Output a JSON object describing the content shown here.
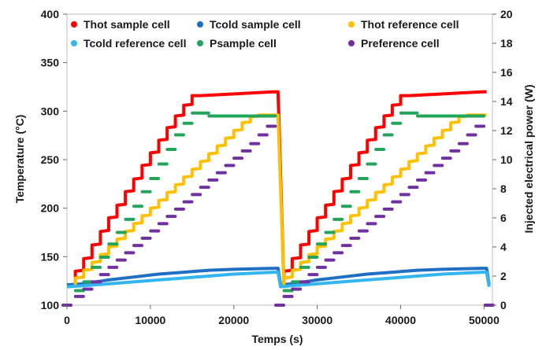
{
  "chart_data": {
    "type": "line",
    "xlabel": "Temps (s)",
    "ylabel_left": "Temperature (°C)",
    "ylabel_right": "Injected electrical power (W)",
    "xlim": [
      0,
      51000
    ],
    "ylim_left": [
      100,
      400
    ],
    "ylim_right": [
      0,
      20
    ],
    "x_ticks": [
      "0",
      "10000",
      "20000",
      "30000",
      "40000",
      "50000"
    ],
    "y_left_ticks": [
      "100",
      "150",
      "200",
      "250",
      "300",
      "350",
      "400"
    ],
    "y_right_ticks": [
      "0",
      "2",
      "4",
      "6",
      "8",
      "10",
      "12",
      "14",
      "16",
      "18",
      "20"
    ],
    "grid": false,
    "legend_position": "top",
    "series": [
      {
        "name": "Thot sample cell",
        "axis": "left",
        "style": "line",
        "color": "#ff0000",
        "points": [
          [
            1000,
            122
          ],
          [
            1000,
            135
          ],
          [
            2000,
            136
          ],
          [
            2000,
            148
          ],
          [
            3000,
            149
          ],
          [
            3000,
            162
          ],
          [
            4000,
            163
          ],
          [
            4000,
            176
          ],
          [
            5000,
            177
          ],
          [
            5000,
            190
          ],
          [
            6000,
            191
          ],
          [
            6000,
            203
          ],
          [
            7000,
            204
          ],
          [
            7000,
            217
          ],
          [
            8000,
            218
          ],
          [
            8000,
            230
          ],
          [
            9000,
            231
          ],
          [
            9000,
            244
          ],
          [
            10000,
            245
          ],
          [
            10000,
            257
          ],
          [
            11000,
            258
          ],
          [
            11000,
            270
          ],
          [
            12000,
            271
          ],
          [
            12000,
            283
          ],
          [
            13000,
            284
          ],
          [
            13000,
            295
          ],
          [
            14000,
            296
          ],
          [
            14000,
            306
          ],
          [
            15000,
            307
          ],
          [
            15000,
            316
          ],
          [
            16000,
            316
          ],
          [
            24800,
            320
          ],
          [
            25300,
            320
          ],
          [
            26000,
            121
          ],
          [
            26000,
            135
          ],
          [
            27000,
            136
          ],
          [
            27000,
            148
          ],
          [
            28000,
            149
          ],
          [
            28000,
            162
          ],
          [
            29000,
            163
          ],
          [
            29000,
            176
          ],
          [
            30000,
            177
          ],
          [
            30000,
            190
          ],
          [
            31000,
            191
          ],
          [
            31000,
            203
          ],
          [
            32000,
            204
          ],
          [
            32000,
            217
          ],
          [
            33000,
            218
          ],
          [
            33000,
            230
          ],
          [
            34000,
            231
          ],
          [
            34000,
            244
          ],
          [
            35000,
            245
          ],
          [
            35000,
            257
          ],
          [
            36000,
            258
          ],
          [
            36000,
            270
          ],
          [
            37000,
            271
          ],
          [
            37000,
            283
          ],
          [
            38000,
            284
          ],
          [
            38000,
            295
          ],
          [
            39000,
            296
          ],
          [
            39000,
            306
          ],
          [
            40000,
            307
          ],
          [
            40000,
            316
          ],
          [
            41000,
            316
          ],
          [
            49800,
            320
          ],
          [
            50300,
            320
          ]
        ]
      },
      {
        "name": "Tcold sample cell",
        "axis": "left",
        "style": "line",
        "color": "#1f6fc5",
        "points": [
          [
            0,
            121
          ],
          [
            2000,
            122
          ],
          [
            5000,
            126
          ],
          [
            8000,
            129
          ],
          [
            11000,
            132
          ],
          [
            14000,
            134
          ],
          [
            17000,
            136
          ],
          [
            20000,
            137
          ],
          [
            24800,
            138
          ],
          [
            25300,
            138
          ],
          [
            25600,
            121
          ],
          [
            27000,
            122
          ],
          [
            30000,
            126
          ],
          [
            33000,
            129
          ],
          [
            36000,
            132
          ],
          [
            39000,
            134
          ],
          [
            42000,
            136
          ],
          [
            45000,
            137
          ],
          [
            49800,
            138
          ],
          [
            50300,
            138
          ],
          [
            50600,
            121
          ]
        ]
      },
      {
        "name": "Thot reference cell",
        "axis": "left",
        "style": "line",
        "color": "#ffc000",
        "points": [
          [
            1000,
            121
          ],
          [
            1000,
            128
          ],
          [
            2000,
            129
          ],
          [
            2000,
            136
          ],
          [
            3000,
            137
          ],
          [
            3000,
            144
          ],
          [
            4000,
            145
          ],
          [
            4000,
            152
          ],
          [
            5000,
            153
          ],
          [
            5000,
            160
          ],
          [
            6000,
            161
          ],
          [
            6000,
            168
          ],
          [
            7000,
            169
          ],
          [
            7000,
            176
          ],
          [
            8000,
            177
          ],
          [
            8000,
            184
          ],
          [
            9000,
            185
          ],
          [
            9000,
            192
          ],
          [
            10000,
            193
          ],
          [
            10000,
            200
          ],
          [
            11000,
            201
          ],
          [
            11000,
            208
          ],
          [
            12000,
            209
          ],
          [
            12000,
            216
          ],
          [
            13000,
            217
          ],
          [
            13000,
            224
          ],
          [
            14000,
            225
          ],
          [
            14000,
            232
          ],
          [
            15000,
            233
          ],
          [
            15000,
            240
          ],
          [
            16000,
            241
          ],
          [
            16000,
            248
          ],
          [
            17000,
            249
          ],
          [
            17000,
            256
          ],
          [
            18000,
            257
          ],
          [
            18000,
            264
          ],
          [
            19000,
            265
          ],
          [
            19000,
            272
          ],
          [
            20000,
            273
          ],
          [
            20000,
            280
          ],
          [
            21000,
            281
          ],
          [
            21000,
            288
          ],
          [
            22000,
            289
          ],
          [
            22000,
            294
          ],
          [
            23000,
            295
          ],
          [
            23000,
            296
          ],
          [
            24800,
            296
          ],
          [
            25300,
            296
          ],
          [
            26000,
            121
          ],
          [
            26000,
            128
          ],
          [
            27000,
            129
          ],
          [
            27000,
            136
          ],
          [
            28000,
            137
          ],
          [
            28000,
            144
          ],
          [
            29000,
            145
          ],
          [
            29000,
            152
          ],
          [
            30000,
            153
          ],
          [
            30000,
            160
          ],
          [
            31000,
            161
          ],
          [
            31000,
            168
          ],
          [
            32000,
            169
          ],
          [
            32000,
            176
          ],
          [
            33000,
            177
          ],
          [
            33000,
            184
          ],
          [
            34000,
            185
          ],
          [
            34000,
            192
          ],
          [
            35000,
            193
          ],
          [
            35000,
            200
          ],
          [
            36000,
            201
          ],
          [
            36000,
            208
          ],
          [
            37000,
            209
          ],
          [
            37000,
            216
          ],
          [
            38000,
            217
          ],
          [
            38000,
            224
          ],
          [
            39000,
            225
          ],
          [
            39000,
            232
          ],
          [
            40000,
            233
          ],
          [
            40000,
            240
          ],
          [
            41000,
            241
          ],
          [
            41000,
            248
          ],
          [
            42000,
            249
          ],
          [
            42000,
            256
          ],
          [
            43000,
            257
          ],
          [
            43000,
            264
          ],
          [
            44000,
            265
          ],
          [
            44000,
            272
          ],
          [
            45000,
            273
          ],
          [
            45000,
            280
          ],
          [
            46000,
            281
          ],
          [
            46000,
            288
          ],
          [
            47000,
            289
          ],
          [
            47000,
            294
          ],
          [
            48000,
            295
          ],
          [
            48000,
            296
          ],
          [
            49800,
            296
          ],
          [
            50300,
            296
          ]
        ]
      },
      {
        "name": "Tcold reference cell",
        "axis": "left",
        "style": "line",
        "color": "#33b5f0",
        "points": [
          [
            0,
            119
          ],
          [
            2000,
            120
          ],
          [
            5000,
            122
          ],
          [
            8000,
            124
          ],
          [
            11000,
            126
          ],
          [
            14000,
            128
          ],
          [
            17000,
            130
          ],
          [
            20000,
            132
          ],
          [
            24800,
            134
          ],
          [
            25300,
            134
          ],
          [
            25600,
            119
          ],
          [
            27000,
            120
          ],
          [
            30000,
            122
          ],
          [
            33000,
            124
          ],
          [
            36000,
            126
          ],
          [
            39000,
            128
          ],
          [
            42000,
            130
          ],
          [
            45000,
            132
          ],
          [
            49800,
            134
          ],
          [
            50300,
            134
          ],
          [
            50600,
            119
          ]
        ]
      },
      {
        "name": "Psample cell",
        "axis": "right",
        "style": "segments",
        "color": "#22a55a",
        "points": [
          [
            1500,
            1.0
          ],
          [
            2500,
            1.6
          ],
          [
            3500,
            2.6
          ],
          [
            4500,
            3.3
          ],
          [
            5500,
            4.2
          ],
          [
            6500,
            5.0
          ],
          [
            7500,
            5.9
          ],
          [
            8500,
            6.8
          ],
          [
            9500,
            7.8
          ],
          [
            10500,
            8.7
          ],
          [
            11500,
            9.7
          ],
          [
            12500,
            10.7
          ],
          [
            13500,
            11.7
          ],
          [
            14500,
            12.5
          ],
          [
            15500,
            13.2
          ],
          [
            16500,
            13.2
          ],
          [
            17500,
            13.0
          ],
          [
            18500,
            13.0
          ],
          [
            19500,
            13.0
          ],
          [
            20500,
            13.0
          ],
          [
            21500,
            13.0
          ],
          [
            22500,
            13.0
          ],
          [
            23500,
            13.0
          ],
          [
            24500,
            13.0
          ],
          [
            26500,
            1.0
          ],
          [
            27500,
            1.6
          ],
          [
            28500,
            2.6
          ],
          [
            29500,
            3.3
          ],
          [
            30500,
            4.2
          ],
          [
            31500,
            5.0
          ],
          [
            32500,
            5.9
          ],
          [
            33500,
            6.8
          ],
          [
            34500,
            7.8
          ],
          [
            35500,
            8.7
          ],
          [
            36500,
            9.7
          ],
          [
            37500,
            10.7
          ],
          [
            38500,
            11.7
          ],
          [
            39500,
            12.5
          ],
          [
            40500,
            13.2
          ],
          [
            41500,
            13.2
          ],
          [
            42500,
            13.0
          ],
          [
            43500,
            13.0
          ],
          [
            44500,
            13.0
          ],
          [
            45500,
            13.0
          ],
          [
            46500,
            13.0
          ],
          [
            47500,
            13.0
          ],
          [
            48500,
            13.0
          ],
          [
            49500,
            13.0
          ]
        ]
      },
      {
        "name": "Preference cell",
        "axis": "right",
        "style": "segments",
        "color": "#7030a0",
        "points": [
          [
            0,
            0
          ],
          [
            1500,
            0.6
          ],
          [
            2500,
            1.1
          ],
          [
            3500,
            1.6
          ],
          [
            4500,
            2.1
          ],
          [
            5500,
            2.6
          ],
          [
            6500,
            3.1
          ],
          [
            7500,
            3.6
          ],
          [
            8500,
            4.1
          ],
          [
            9500,
            4.6
          ],
          [
            10500,
            5.1
          ],
          [
            11500,
            5.6
          ],
          [
            12500,
            6.1
          ],
          [
            13500,
            6.6
          ],
          [
            14500,
            7.1
          ],
          [
            15500,
            7.6
          ],
          [
            16500,
            8.1
          ],
          [
            17500,
            8.6
          ],
          [
            18500,
            9.1
          ],
          [
            19500,
            9.6
          ],
          [
            20500,
            10.1
          ],
          [
            21500,
            10.6
          ],
          [
            22500,
            11.1
          ],
          [
            23500,
            11.7
          ],
          [
            24500,
            12.3
          ],
          [
            25500,
            0
          ],
          [
            26500,
            0.6
          ],
          [
            27500,
            1.1
          ],
          [
            28500,
            1.6
          ],
          [
            29500,
            2.1
          ],
          [
            30500,
            2.6
          ],
          [
            31500,
            3.1
          ],
          [
            32500,
            3.6
          ],
          [
            33500,
            4.1
          ],
          [
            34500,
            4.6
          ],
          [
            35500,
            5.1
          ],
          [
            36500,
            5.6
          ],
          [
            37500,
            6.1
          ],
          [
            38500,
            6.6
          ],
          [
            39500,
            7.1
          ],
          [
            40500,
            7.6
          ],
          [
            41500,
            8.1
          ],
          [
            42500,
            8.6
          ],
          [
            43500,
            9.1
          ],
          [
            44500,
            9.6
          ],
          [
            45500,
            10.1
          ],
          [
            46500,
            10.6
          ],
          [
            47500,
            11.1
          ],
          [
            48500,
            11.7
          ],
          [
            49500,
            12.3
          ],
          [
            50600,
            0
          ]
        ]
      }
    ]
  }
}
